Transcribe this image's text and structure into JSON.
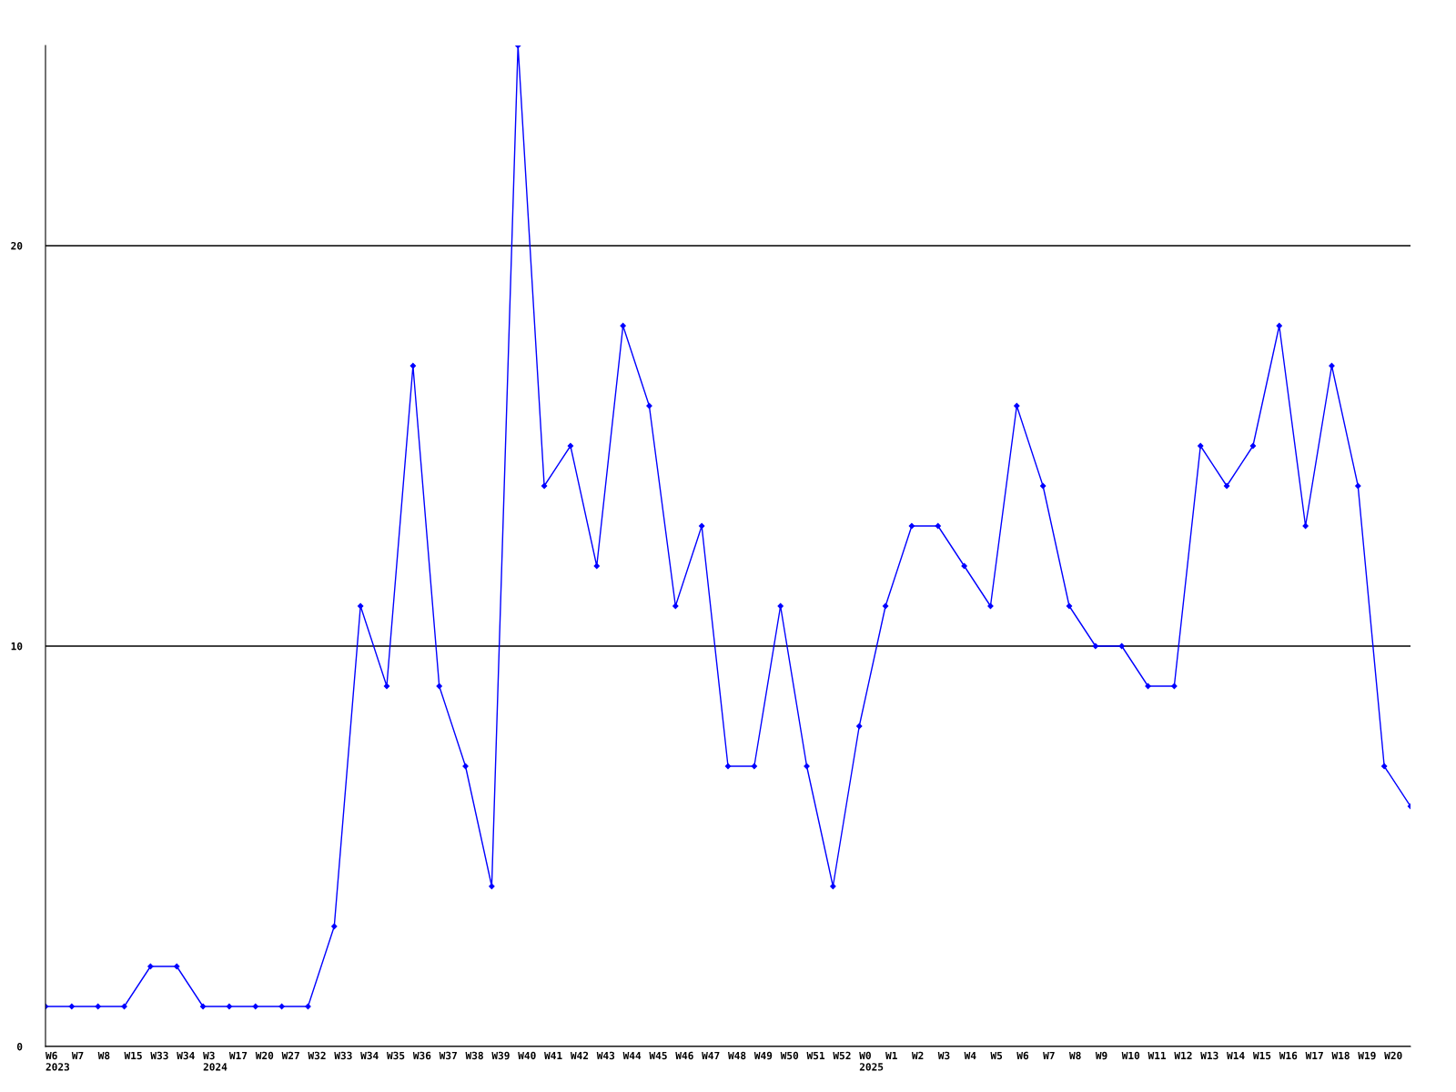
{
  "chart_data": {
    "type": "line",
    "categories": [
      "W6\n2023",
      "W7",
      "W8",
      "W15",
      "W33",
      "W34",
      "W3\n2024",
      "W17",
      "W20",
      "W27",
      "W32",
      "W33",
      "W34",
      "W35",
      "W36",
      "W37",
      "W38",
      "W39",
      "W40",
      "W41",
      "W42",
      "W43",
      "W44",
      "W45",
      "W46",
      "W47",
      "W48",
      "W49",
      "W50",
      "W51",
      "W52",
      "W0\n2025",
      "W1",
      "W2",
      "W3",
      "W4",
      "W5",
      "W6",
      "W7",
      "W8",
      "W9",
      "W10",
      "W11",
      "W12",
      "W13",
      "W14",
      "W15",
      "W16",
      "W17",
      "W18",
      "W19",
      "W20",
      null
    ],
    "series": [
      {
        "color": "#0000ff",
        "values": [
          1,
          1,
          1,
          1,
          2,
          2,
          1,
          1,
          1,
          1,
          1,
          3,
          11,
          9,
          17,
          9,
          7,
          4,
          25,
          14,
          15,
          12,
          18,
          16,
          11,
          13,
          7,
          7,
          11,
          7,
          4,
          8,
          11,
          13,
          13,
          12,
          11,
          16,
          14,
          11,
          10,
          10,
          9,
          9,
          15,
          14,
          15,
          18,
          13,
          17,
          14,
          7,
          6
        ]
      }
    ],
    "ylim": [
      0,
      25
    ],
    "yticks": [
      0,
      10,
      20
    ],
    "grid": "y",
    "marker": "diamond",
    "line_style": "solid"
  }
}
